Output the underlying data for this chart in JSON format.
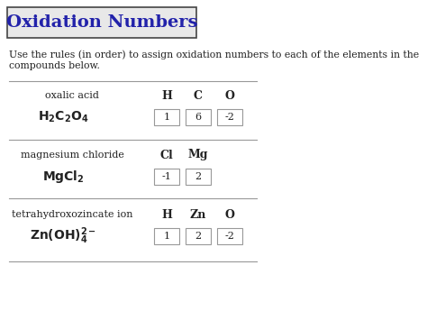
{
  "title": "Oxidation Numbers",
  "title_color": "#2222aa",
  "bg_color": "#e8e8e8",
  "main_bg": "#ffffff",
  "subtitle_line1": "Use the rules (in order) to assign oxidation numbers to each of the elements in the",
  "subtitle_line2": "compounds below.",
  "rows": [
    {
      "name": "oxalic acid",
      "formula": "$\\mathbf{H_2C_2O_4}$",
      "elements": [
        "H",
        "C",
        "O"
      ],
      "values": [
        "1",
        "6",
        "-2"
      ]
    },
    {
      "name": "magnesium chloride",
      "formula": "$\\mathbf{MgCl_2}$",
      "elements": [
        "Cl",
        "Mg"
      ],
      "values": [
        "-1",
        "2"
      ]
    },
    {
      "name": "tetrahydroxozincate ion",
      "formula": "$\\mathbf{Zn(OH)_4^{2-}}$",
      "elements": [
        "H",
        "Zn",
        "O"
      ],
      "values": [
        "1",
        "2",
        "-2"
      ]
    }
  ],
  "line_color": "#999999",
  "box_edge_color": "#999999",
  "box_face_color": "#ffffff",
  "font_color": "#222222",
  "title_font_size": 14,
  "name_font_size": 8,
  "formula_font_size": 10,
  "elem_font_size": 9,
  "val_font_size": 8,
  "subtitle_font_size": 7.8
}
